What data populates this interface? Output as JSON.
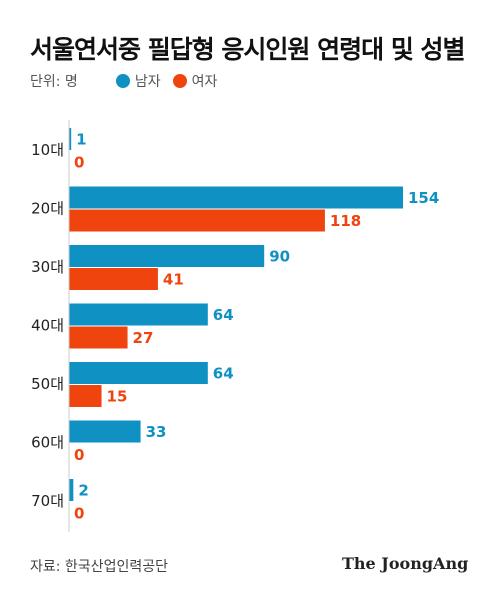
{
  "title": "서울연서중 필답형 응시인원 연령대 및 성별",
  "unit_label": "단위: 명",
  "source": "자료: 한국산업인력공단",
  "logo": "The JoongAng",
  "colors": {
    "male": "#0f91c4",
    "female": "#f0440f"
  },
  "legend": [
    {
      "name": "남자",
      "color": "#0f91c4"
    },
    {
      "name": "여자",
      "color": "#f0440f"
    }
  ],
  "chart_data": {
    "type": "bar",
    "orientation": "horizontal",
    "title": "서울연서중 필답형 응시인원 연령대 및 성별",
    "categories": [
      "10대",
      "20대",
      "30대",
      "40대",
      "50대",
      "60대",
      "70대"
    ],
    "series": [
      {
        "name": "남자",
        "color": "#0f91c4",
        "values": [
          1,
          154,
          90,
          64,
          64,
          33,
          2
        ]
      },
      {
        "name": "여자",
        "color": "#f0440f",
        "values": [
          0,
          118,
          41,
          27,
          15,
          0,
          0
        ]
      }
    ],
    "xlim": [
      0,
      154
    ],
    "grid": false,
    "legend_position": "top-left"
  }
}
